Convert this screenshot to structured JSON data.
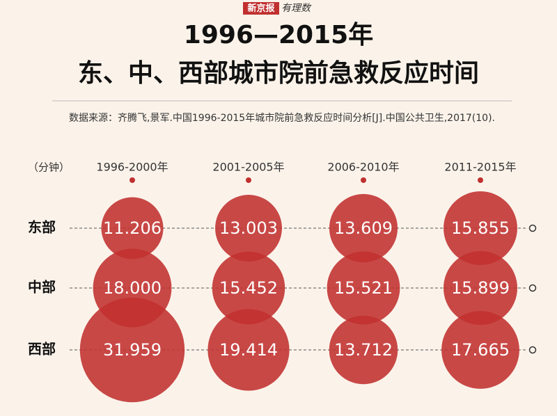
{
  "header": {
    "brand_left": "新京报",
    "brand_right": "有理数"
  },
  "chart_data": {
    "type": "bubble",
    "title": [
      "1996—2015年",
      "东、中、西部城市院前急救反应时间"
    ],
    "source": "数据来源：齐腾飞,景军.中国1996-2015年城市院前急救反应时间分析[J].中国公共卫生,2017(10).",
    "unit": "（分钟）",
    "categories": [
      "1996-2000年",
      "2001-2005年",
      "2006-2010年",
      "2011-2015年"
    ],
    "series": [
      {
        "name": "东部",
        "color": "#c0302f",
        "values": [
          11.206,
          13.003,
          13.609,
          15.855
        ],
        "value_labels": [
          "11.206",
          "13.003",
          "13.609",
          "15.855"
        ]
      },
      {
        "name": "中部",
        "color": "#c0302f",
        "values": [
          18,
          15.452,
          15.521,
          15.899
        ],
        "value_labels": [
          "18.000",
          "15.452",
          "15.521",
          "15.899"
        ]
      },
      {
        "name": "西部",
        "color": "#c0302f",
        "values": [
          31.959,
          19.414,
          13.712,
          17.665
        ],
        "value_labels": [
          "31.959",
          "19.414",
          "13.712",
          "17.665"
        ]
      }
    ]
  }
}
